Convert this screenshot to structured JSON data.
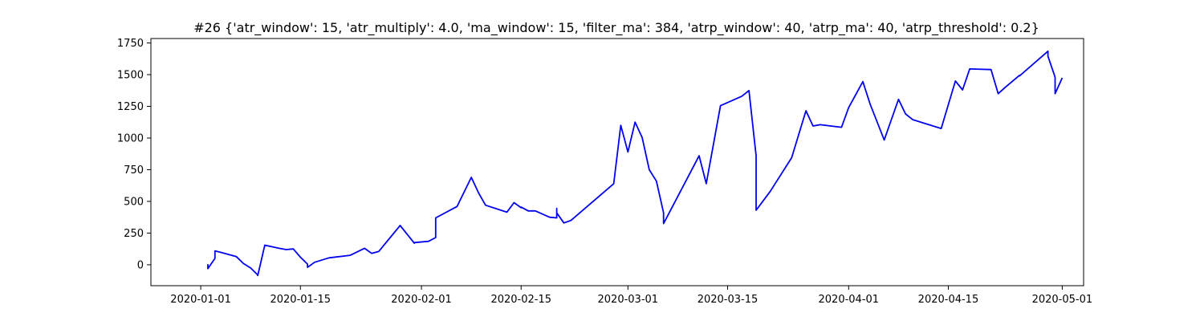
{
  "chart_data": {
    "type": "line",
    "title": "#26 {'atr_window': 15, 'atr_multiply': 4.0, 'ma_window': 15, 'filter_ma': 384, 'atrp_window': 40, 'atrp_ma': 40, 'atrp_threshold': 0.2}",
    "xlabel": "",
    "ylabel": "",
    "x_scale": "date",
    "xlim": [
      "2019-12-25",
      "2020-05-04"
    ],
    "ylim": [
      -165,
      1785
    ],
    "grid": false,
    "x_ticks": [
      "2020-01-01",
      "2020-01-15",
      "2020-02-01",
      "2020-02-15",
      "2020-03-01",
      "2020-03-15",
      "2020-04-01",
      "2020-04-15",
      "2020-05-01"
    ],
    "y_ticks": [
      0,
      250,
      500,
      750,
      1000,
      1250,
      1500,
      1750
    ],
    "series": [
      {
        "color": "#0000ee",
        "x": [
          "2020-01-02",
          "2020-01-02",
          "2020-01-03",
          "2020-01-03",
          "2020-01-04",
          "2020-01-06",
          "2020-01-07",
          "2020-01-08",
          "2020-01-09",
          "2020-01-09",
          "2020-01-10",
          "2020-01-12",
          "2020-01-13",
          "2020-01-14",
          "2020-01-15",
          "2020-01-16",
          "2020-01-16",
          "2020-01-17",
          "2020-01-19",
          "2020-01-22",
          "2020-01-24",
          "2020-01-25",
          "2020-01-26",
          "2020-01-29",
          "2020-01-31",
          "2020-01-31",
          "2020-02-02",
          "2020-02-03",
          "2020-02-03",
          "2020-02-03",
          "2020-02-06",
          "2020-02-08",
          "2020-02-09",
          "2020-02-10",
          "2020-02-13",
          "2020-02-14",
          "2020-02-15",
          "2020-02-15",
          "2020-02-16",
          "2020-02-17",
          "2020-02-19",
          "2020-02-20",
          "2020-02-20",
          "2020-02-20",
          "2020-02-21",
          "2020-02-22",
          "2020-02-28",
          "2020-02-29",
          "2020-03-01",
          "2020-03-02",
          "2020-03-03",
          "2020-03-04",
          "2020-03-05",
          "2020-03-06",
          "2020-03-06",
          "2020-03-11",
          "2020-03-12",
          "2020-03-14",
          "2020-03-17",
          "2020-03-18",
          "2020-03-19",
          "2020-03-19",
          "2020-03-21",
          "2020-03-24",
          "2020-03-26",
          "2020-03-27",
          "2020-03-28",
          "2020-03-31",
          "2020-04-01",
          "2020-04-03",
          "2020-04-04",
          "2020-04-06",
          "2020-04-08",
          "2020-04-09",
          "2020-04-10",
          "2020-04-14",
          "2020-04-16",
          "2020-04-17",
          "2020-04-18",
          "2020-04-21",
          "2020-04-22",
          "2020-04-23",
          "2020-04-25",
          "2020-04-25",
          "2020-04-29",
          "2020-04-29",
          "2020-04-30",
          "2020-04-30",
          "2020-05-01"
        ],
        "y": [
          5,
          -30,
          50,
          110,
          95,
          65,
          10,
          -25,
          -80,
          -85,
          155,
          130,
          120,
          125,
          60,
          5,
          -20,
          20,
          55,
          75,
          130,
          90,
          105,
          310,
          170,
          175,
          185,
          215,
          370,
          370,
          460,
          690,
          570,
          470,
          415,
          490,
          450,
          455,
          425,
          425,
          375,
          370,
          445,
          410,
          330,
          350,
          640,
          1100,
          890,
          1125,
          1005,
          750,
          660,
          410,
          325,
          860,
          640,
          1255,
          1330,
          1375,
          860,
          430,
          580,
          845,
          1215,
          1095,
          1105,
          1085,
          1240,
          1445,
          1270,
          985,
          1305,
          1190,
          1145,
          1075,
          1450,
          1380,
          1545,
          1540,
          1350,
          1400,
          1495,
          1490,
          1685,
          1645,
          1480,
          1350,
          1475
        ]
      }
    ]
  }
}
